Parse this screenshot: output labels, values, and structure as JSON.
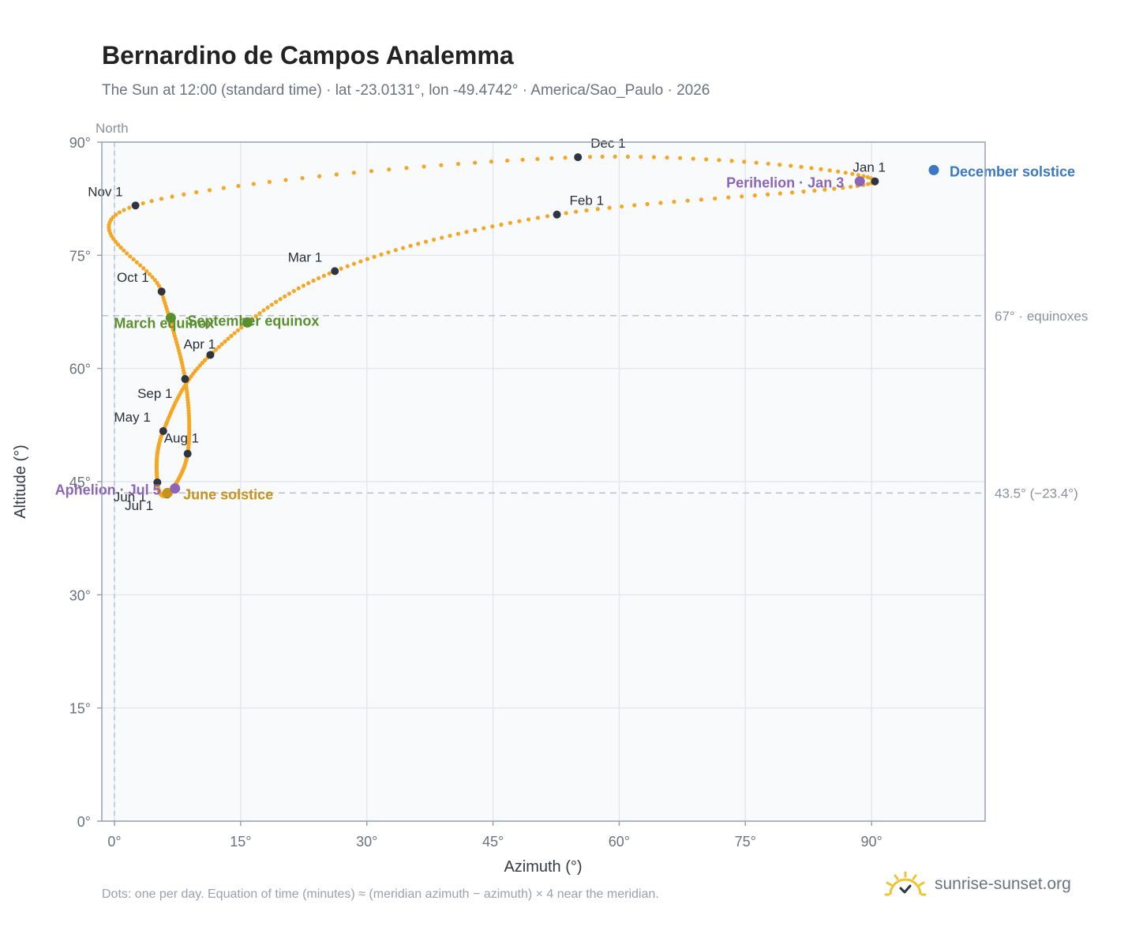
{
  "title": "Bernardino de Campos Analemma",
  "subtitle": "The Sun at 12:00 (standard time) · lat -23.0131°, lon -49.4742° · America/Sao_Paulo · 2026",
  "footnote": "Dots: one per day. Equation of time (minutes) ≈ (meridian azimuth − azimuth) × 4 near the meridian.",
  "brand": {
    "name": "sunrise-sunset.org",
    "icon": "sun-icon"
  },
  "colors": {
    "path": "#f5a623",
    "month_dot": "#2f3540",
    "equinox": "#5a8f2e",
    "june_solstice": "#c8911a",
    "december_solstice": "#3b78c3",
    "apsis": "#8c65b8",
    "grid": "#e4e8ee",
    "frame": "#98a2b3",
    "plot_bg": "#f8fafc"
  },
  "chart_data": {
    "type": "scatter",
    "title": "Bernardino de Campos Analemma",
    "xlabel": "Azimuth (°)",
    "ylabel": "Altitude (°)",
    "xlim": [
      -1.5,
      103.5
    ],
    "ylim": [
      0,
      90
    ],
    "x_ticks": [
      "0°",
      "15°",
      "30°",
      "45°",
      "60°",
      "75°",
      "90°"
    ],
    "y_ticks": [
      "0°",
      "15°",
      "30°",
      "45°",
      "60°",
      "75°",
      "90°"
    ],
    "north_marker": {
      "azimuth": 0,
      "label": "North"
    },
    "grid": true,
    "reference_lines": [
      {
        "altitude": 67,
        "label": "67° · equinoxes"
      },
      {
        "altitude": 43.5,
        "label": "43.5° (−23.4°)"
      }
    ],
    "month_points": [
      {
        "label": "Jan 1",
        "azimuth": 90.4,
        "altitude": 84.8
      },
      {
        "label": "Feb 1",
        "azimuth": 52.6,
        "altitude": 80.4
      },
      {
        "label": "Mar 1",
        "azimuth": 26.2,
        "altitude": 72.9
      },
      {
        "label": "Apr 1",
        "azimuth": 11.4,
        "altitude": 61.8
      },
      {
        "label": "May 1",
        "azimuth": 5.8,
        "altitude": 51.7
      },
      {
        "label": "Jun 1",
        "azimuth": 5.1,
        "altitude": 44.9
      },
      {
        "label": "Jul 1",
        "azimuth": 6.3,
        "altitude": 43.3
      },
      {
        "label": "Aug 1",
        "azimuth": 8.7,
        "altitude": 48.7
      },
      {
        "label": "Sep 1",
        "azimuth": 8.4,
        "altitude": 58.6
      },
      {
        "label": "Oct 1",
        "azimuth": 5.6,
        "altitude": 70.2
      },
      {
        "label": "Nov 1",
        "azimuth": 2.5,
        "altitude": 81.6
      },
      {
        "label": "Dec 1",
        "azimuth": 55.1,
        "altitude": 88.0
      }
    ],
    "events": [
      {
        "label": "December solstice",
        "azimuth": 97.4,
        "altitude": 86.3,
        "color": "#3b78c3"
      },
      {
        "label": "Perihelion · Jan 3",
        "azimuth": 88.6,
        "altitude": 84.8,
        "color": "#8c65b8"
      },
      {
        "label": "March equinox",
        "azimuth": 6.7,
        "altitude": 66.7,
        "color": "#5a8f2e"
      },
      {
        "label": "September equinox",
        "azimuth": 15.8,
        "altitude": 66.1,
        "color": "#5a8f2e"
      },
      {
        "label": "June solstice",
        "azimuth": 6.3,
        "altitude": 43.5,
        "color": "#c8911a"
      },
      {
        "label": "Aphelion · Jul 5",
        "azimuth": 7.2,
        "altitude": 44.1,
        "color": "#8c65b8"
      }
    ]
  }
}
